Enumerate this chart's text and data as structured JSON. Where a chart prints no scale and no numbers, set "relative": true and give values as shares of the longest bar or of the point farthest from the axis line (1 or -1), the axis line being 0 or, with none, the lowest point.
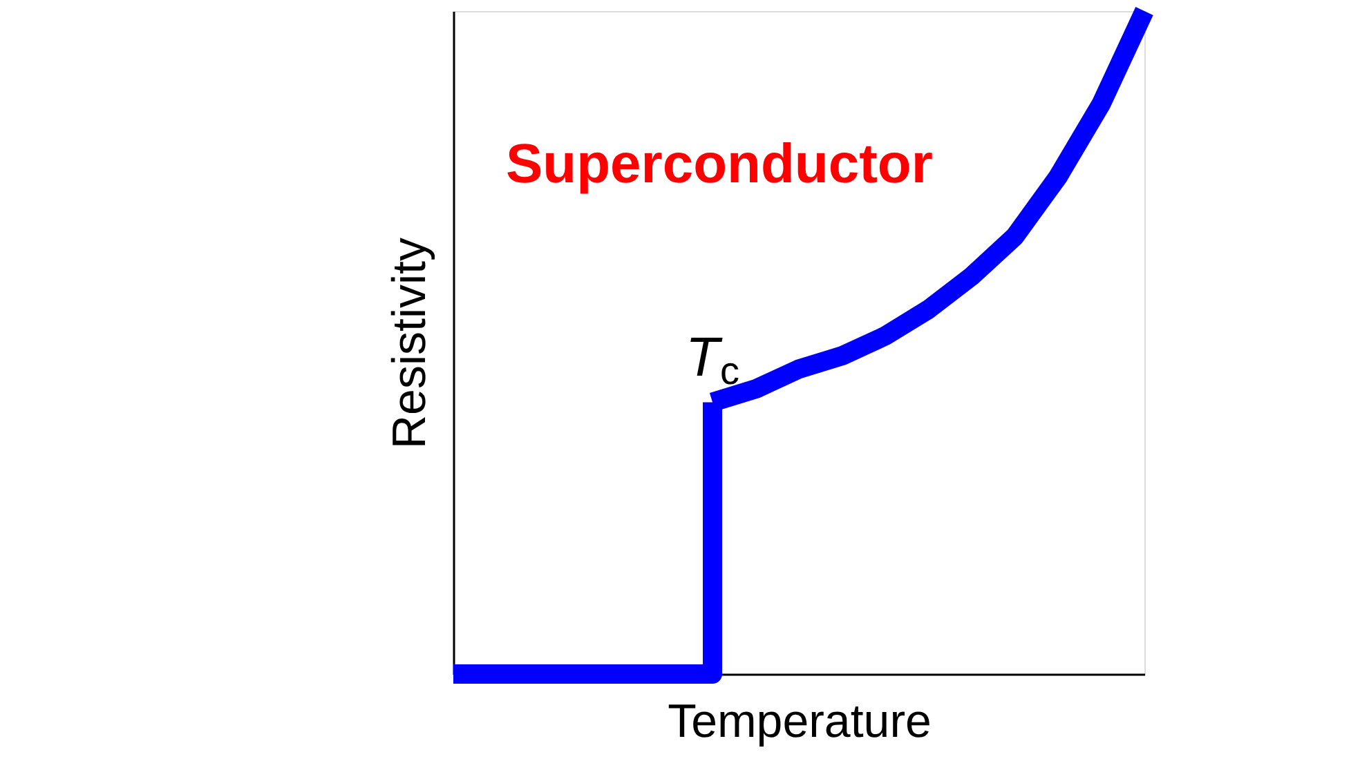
{
  "chart_data": {
    "type": "line",
    "relative": true,
    "xlabel": "Temperature",
    "ylabel": "Resistivity",
    "categories": [
      null,
      null,
      null,
      null,
      null,
      null,
      null,
      null,
      null,
      null,
      null,
      null,
      null,
      null,
      null,
      null,
      null
    ],
    "series": [
      {
        "type": "step",
        "color": "#0000ff",
        "values": [
          0,
          0,
          0,
          0,
          0,
          0,
          0.41,
          null,
          null,
          null,
          null,
          null,
          null,
          null,
          null,
          null,
          null
        ]
      },
      {
        "color": "#0000ff",
        "values": [
          null,
          null,
          null,
          null,
          null,
          null,
          0.41,
          0.43,
          0.46,
          0.48,
          0.51,
          0.55,
          0.6,
          0.66,
          0.75,
          0.86,
          1.0
        ]
      }
    ],
    "annotations": [
      "Superconductor",
      "T$_{c}$"
    ],
    "tick_labels": false,
    "grid": false,
    "marker": "none",
    "line_style": "solid"
  }
}
